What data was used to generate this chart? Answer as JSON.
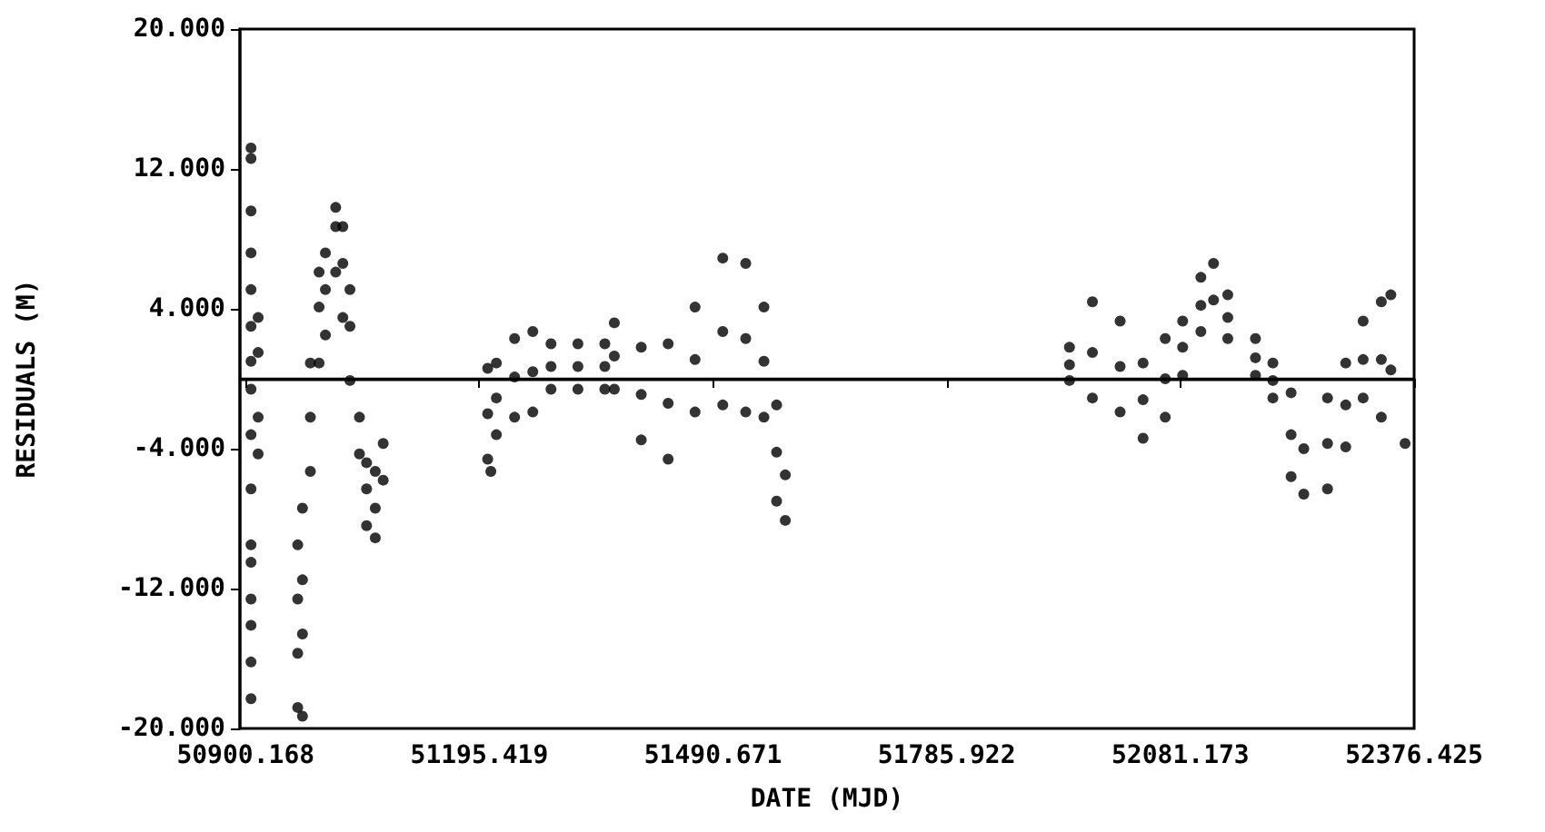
{
  "chart_data": {
    "type": "scatter",
    "xlabel": "DATE (MJD)",
    "ylabel": "RESIDUALS (M)",
    "marker": "circle",
    "grid": false,
    "xlim": [
      50893,
      52376.425
    ],
    "xticks": [
      50900.168,
      51195.419,
      51490.671,
      51785.922,
      52081.173,
      52376.425
    ],
    "ylim": [
      -20,
      20
    ],
    "yticks": [
      {
        "value": -20,
        "label": "-20.000"
      },
      {
        "value": -12,
        "label": "-12.000"
      },
      {
        "value": -4,
        "label": "-4.000"
      },
      {
        "value": 4,
        "label": "4.000"
      },
      {
        "value": 12,
        "label": "12.000"
      },
      {
        "value": 20,
        "label": "20.000"
      }
    ],
    "ref_lines": [
      {
        "axis": "y",
        "value": 0,
        "color": "#000000"
      }
    ],
    "series": [
      {
        "color": "#000000",
        "x": [
          50907,
          50907,
          50907,
          50907,
          50907,
          50907,
          50907,
          50907,
          50907,
          50907,
          50907,
          50907,
          50907,
          50907,
          50907,
          50907,
          50916,
          50916,
          50916,
          50916,
          50966,
          50966,
          50966,
          50966,
          50972,
          50972,
          50972,
          50972,
          50982,
          50982,
          50982,
          50993,
          50993,
          50993,
          51001,
          51001,
          51001,
          51014,
          51014,
          51014,
          51023,
          51023,
          51023,
          51032,
          51032,
          51032,
          51044,
          51044,
          51053,
          51053,
          51053,
          51064,
          51064,
          51064,
          51074,
          51074,
          51206,
          51206,
          51206,
          51210,
          51217,
          51217,
          51217,
          51240,
          51240,
          51240,
          51263,
          51263,
          51263,
          51286,
          51286,
          51286,
          51320,
          51320,
          51320,
          51354,
          51354,
          51354,
          51366,
          51366,
          51366,
          51400,
          51400,
          51400,
          51434,
          51434,
          51434,
          51468,
          51468,
          51468,
          51503,
          51503,
          51503,
          51532,
          51532,
          51532,
          51555,
          51555,
          51555,
          51571,
          51571,
          51571,
          51582,
          51582,
          51941,
          51941,
          51941,
          51970,
          51970,
          51970,
          52005,
          52005,
          52005,
          52034,
          52034,
          52034,
          52062,
          52062,
          52062,
          52084,
          52084,
          52084,
          52107,
          52107,
          52107,
          52123,
          52123,
          52141,
          52141,
          52141,
          52176,
          52176,
          52176,
          52198,
          52198,
          52198,
          52221,
          52221,
          52221,
          52237,
          52237,
          52267,
          52267,
          52267,
          52290,
          52290,
          52290,
          52312,
          52312,
          52312,
          52335,
          52335,
          52335,
          52347,
          52347,
          52365
        ],
        "values": [
          13.2,
          12.6,
          9.6,
          7.2,
          5.1,
          3.0,
          1.0,
          -0.6,
          -3.2,
          -6.3,
          -9.5,
          -10.5,
          -12.6,
          -14.1,
          -16.2,
          -18.3,
          3.5,
          1.5,
          -2.2,
          -4.3,
          -9.5,
          -12.6,
          -15.7,
          -18.8,
          -7.4,
          -11.5,
          -14.6,
          -19.3,
          -5.3,
          -2.2,
          0.9,
          4.1,
          6.1,
          0.9,
          7.2,
          5.1,
          2.5,
          9.8,
          8.7,
          6.1,
          8.7,
          6.6,
          3.5,
          5.1,
          3.0,
          -0.1,
          -2.2,
          -4.3,
          -4.8,
          -6.3,
          -8.4,
          -5.3,
          -7.4,
          -9.1,
          -3.7,
          -5.8,
          -4.6,
          0.6,
          -2.0,
          -5.3,
          0.9,
          -3.2,
          -1.1,
          2.3,
          -2.2,
          0.1,
          2.7,
          -1.9,
          0.4,
          2.0,
          -0.6,
          0.7,
          2.0,
          -0.6,
          0.7,
          2.0,
          -0.6,
          0.7,
          3.2,
          -0.6,
          1.3,
          1.8,
          -3.5,
          -0.9,
          2.0,
          -4.6,
          -1.4,
          4.1,
          -1.9,
          1.1,
          6.9,
          -1.5,
          2.7,
          6.6,
          -1.9,
          2.3,
          4.1,
          -2.2,
          1.0,
          -1.5,
          -7.0,
          -4.2,
          -8.1,
          -5.5,
          1.8,
          -0.1,
          0.8,
          4.4,
          -1.1,
          1.5,
          3.3,
          -1.9,
          0.7,
          0.9,
          -3.4,
          -1.2,
          2.3,
          -2.2,
          0.0,
          3.3,
          0.2,
          1.8,
          5.8,
          2.7,
          4.2,
          6.6,
          4.5,
          4.8,
          2.3,
          3.5,
          2.3,
          0.2,
          1.2,
          0.9,
          -1.1,
          -0.1,
          -0.8,
          -5.6,
          -3.2,
          -6.6,
          -4.0,
          -1.1,
          -6.3,
          -3.7,
          0.9,
          -3.9,
          -1.5,
          3.3,
          -1.1,
          1.1,
          4.4,
          -2.2,
          1.1,
          4.8,
          0.5,
          -3.7
        ]
      }
    ]
  }
}
